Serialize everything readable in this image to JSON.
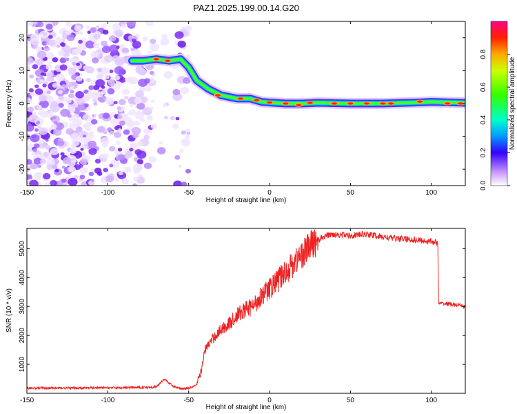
{
  "title": "PAZ1.2025.199.00.14.G20",
  "chart_data": [
    {
      "type": "heatmap",
      "xlabel": "Height of straight line (km)",
      "ylabel": "Frequency (Hz)",
      "xlim": [
        -150,
        121
      ],
      "ylim": [
        -25,
        25
      ],
      "xticks": [
        -150,
        -100,
        -50,
        0,
        50,
        100
      ],
      "yticks": [
        -20,
        -10,
        0,
        10,
        20
      ],
      "colorbar": {
        "label": "Normalized spectral amplitude",
        "range": [
          0,
          1
        ],
        "ticks": [
          "0.0",
          "0.2",
          "0.4",
          "0.6",
          "0.8"
        ]
      },
      "ridge": {
        "x": [
          -85,
          -78,
          -70,
          -62,
          -55,
          -50,
          -45,
          -38,
          -30,
          -20,
          -12,
          -5,
          0,
          10,
          20,
          30,
          50,
          70,
          90,
          100,
          121
        ],
        "y": [
          13,
          13,
          13.5,
          13,
          13.5,
          11,
          7,
          4.5,
          2.5,
          1.5,
          1.5,
          0.5,
          0.3,
          0,
          0,
          0.2,
          0,
          0,
          0.3,
          0.5,
          0.2
        ]
      },
      "noise_region_x": [
        -150,
        -50
      ]
    },
    {
      "type": "line",
      "xlabel": "Height of straight line (km)",
      "ylabel": "SNR (10 * v/v)",
      "xlim": [
        -150,
        121
      ],
      "ylim": [
        0,
        5700
      ],
      "xticks": [
        -150,
        -100,
        -50,
        0,
        50,
        100
      ],
      "yticks": [
        1000,
        2000,
        3000,
        4000,
        5000
      ],
      "series": [
        {
          "color": "#ee2222",
          "x": [
            -150,
            -120,
            -100,
            -80,
            -70,
            -65,
            -60,
            -55,
            -50,
            -45,
            -42,
            -40,
            -35,
            -30,
            -25,
            -20,
            -15,
            -10,
            -5,
            0,
            5,
            10,
            15,
            20,
            25,
            30,
            35,
            40,
            50,
            60,
            70,
            80,
            90,
            100,
            104,
            104.5,
            110,
            121
          ],
          "y": [
            180,
            180,
            190,
            200,
            220,
            500,
            250,
            160,
            180,
            300,
            800,
            1500,
            1900,
            2200,
            2400,
            2700,
            2900,
            3000,
            3400,
            3600,
            3900,
            4200,
            4500,
            4800,
            5100,
            5300,
            5450,
            5500,
            5450,
            5500,
            5400,
            5350,
            5300,
            5250,
            5200,
            3100,
            3100,
            3000
          ]
        }
      ]
    }
  ]
}
